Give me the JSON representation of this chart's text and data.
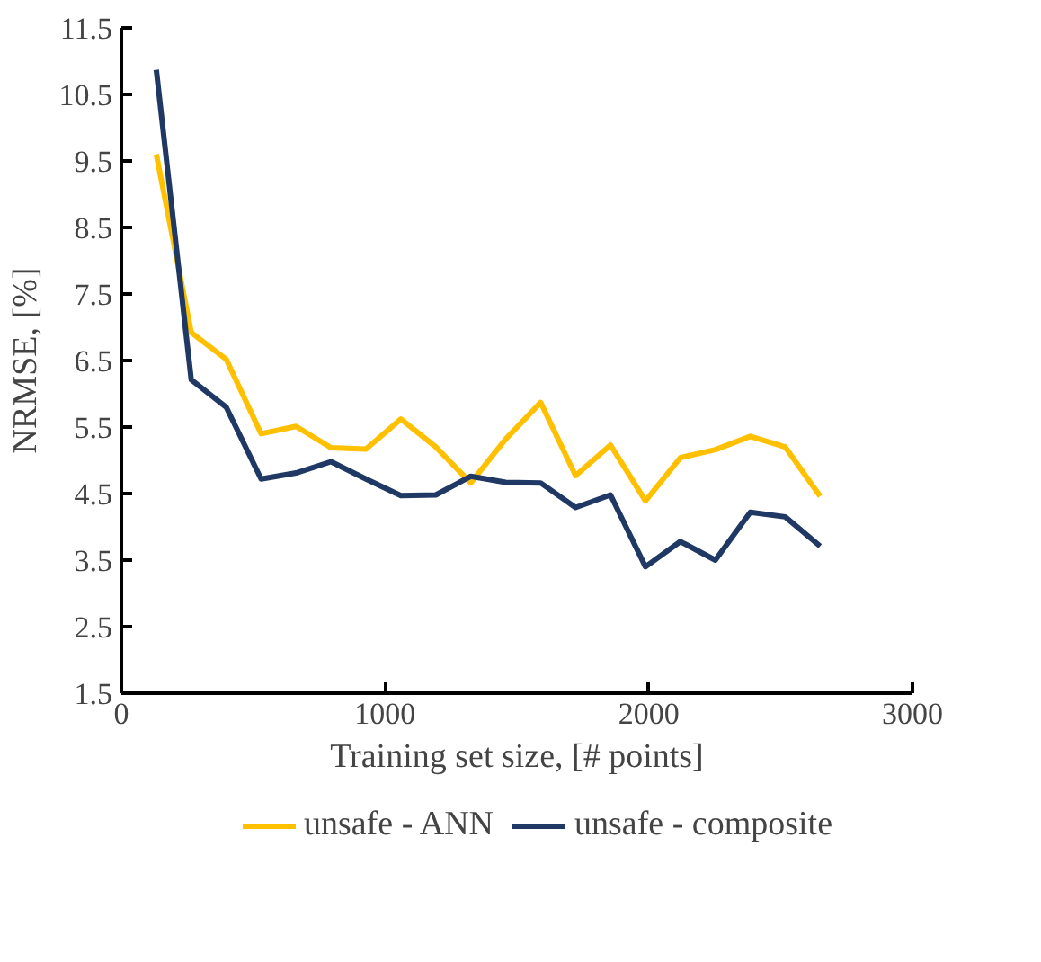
{
  "chart_data": {
    "type": "line",
    "xlabel": "Training set size, [# points]",
    "ylabel": "NRMSE, [%]",
    "x": [
      132.5,
      265,
      397.5,
      530,
      662.5,
      795,
      927.5,
      1060,
      1192.5,
      1325,
      1457.5,
      1590,
      1722.5,
      1855,
      1987.5,
      2120,
      2252.5,
      2385,
      2517.5,
      2650
    ],
    "series": [
      {
        "name": "unsafe - ANN",
        "color": "#ffc000",
        "values": [
          9.6,
          6.92,
          6.52,
          5.4,
          5.51,
          5.19,
          5.17,
          5.62,
          5.2,
          4.66,
          5.32,
          5.87,
          4.77,
          5.23,
          4.39,
          5.04,
          5.16,
          5.36,
          5.2,
          4.46
        ]
      },
      {
        "name": "unsafe - composite",
        "color": "#203864",
        "values": [
          10.87,
          6.21,
          5.8,
          4.72,
          4.81,
          4.98,
          4.72,
          4.47,
          4.48,
          4.76,
          4.67,
          4.66,
          4.29,
          4.48,
          3.4,
          3.78,
          3.5,
          4.22,
          4.15,
          3.71
        ]
      }
    ],
    "xlim": [
      0,
      3000
    ],
    "xticks": [
      0,
      1000,
      2000,
      3000
    ],
    "ylim": [
      1.5,
      11.5
    ],
    "yticks": [
      1.5,
      2.5,
      3.5,
      4.5,
      5.5,
      6.5,
      7.5,
      8.5,
      9.5,
      10.5,
      11.5
    ],
    "legend": "bottom",
    "grid": false,
    "marker": "none",
    "line_style": "solid"
  }
}
